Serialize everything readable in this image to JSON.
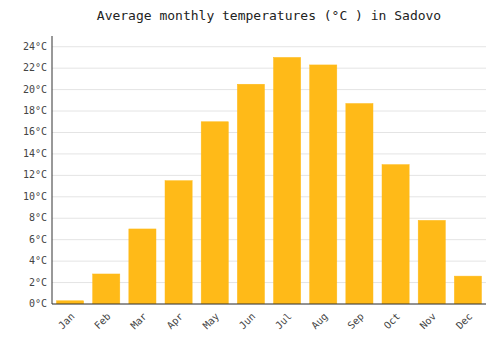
{
  "chart_data": {
    "type": "bar",
    "title": "Average monthly temperatures (°C ) in Sadovo",
    "categories": [
      "Jan",
      "Feb",
      "Mar",
      "Apr",
      "May",
      "Jun",
      "Jul",
      "Aug",
      "Sep",
      "Oct",
      "Nov",
      "Dec"
    ],
    "values": [
      0.3,
      2.8,
      7.0,
      11.5,
      17.0,
      20.5,
      23.0,
      22.3,
      18.7,
      13.0,
      7.8,
      2.6
    ],
    "color": "#FFBA18",
    "ylim": [
      0,
      25
    ],
    "yticks": [
      {
        "value": 0,
        "label": "0°C"
      },
      {
        "value": 2,
        "label": "2°C"
      },
      {
        "value": 4,
        "label": "4°C"
      },
      {
        "value": 6,
        "label": "6°C"
      },
      {
        "value": 8,
        "label": "8°C"
      },
      {
        "value": 10,
        "label": "10°C"
      },
      {
        "value": 12,
        "label": "12°C"
      },
      {
        "value": 14,
        "label": "14°C"
      },
      {
        "value": 16,
        "label": "16°C"
      },
      {
        "value": 18,
        "label": "18°C"
      },
      {
        "value": 20,
        "label": "20°C"
      },
      {
        "value": 22,
        "label": "22°C"
      },
      {
        "value": 24,
        "label": "24°C"
      }
    ],
    "grid": true
  }
}
